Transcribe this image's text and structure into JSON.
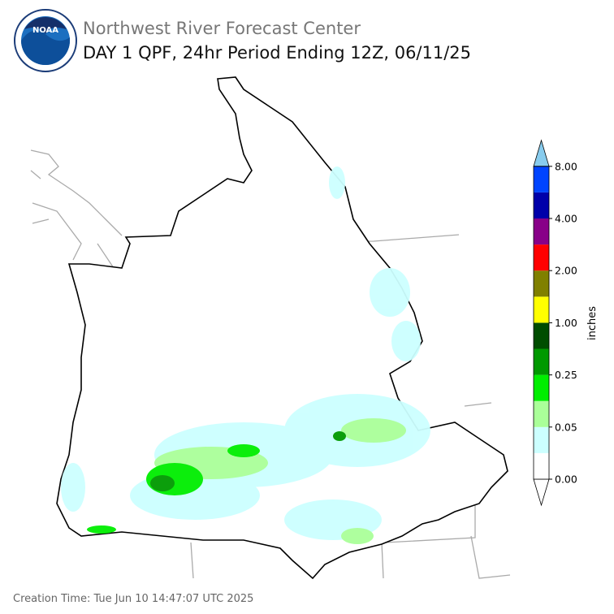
{
  "header": {
    "agency": "Northwest River Forecast Center",
    "title": "DAY 1 QPF, 24hr Period Ending 12Z, 06/11/25",
    "logo_text": "NOAA"
  },
  "legend": {
    "unit": "inches",
    "labels": [
      "0.00",
      "0.05",
      "0.25",
      "1.00",
      "2.00",
      "4.00",
      "8.00"
    ],
    "colors": [
      "#ffffff",
      "#ccffff",
      "#aaff99",
      "#00ee00",
      "#009900",
      "#004d00",
      "#ffff00",
      "#808000",
      "#ff0000",
      "#880088",
      "#0000aa",
      "#0044ff",
      "#88ccee"
    ]
  },
  "footer": {
    "creation_time": "Creation Time: Tue Jun 10 14:47:07 UTC 2025"
  }
}
